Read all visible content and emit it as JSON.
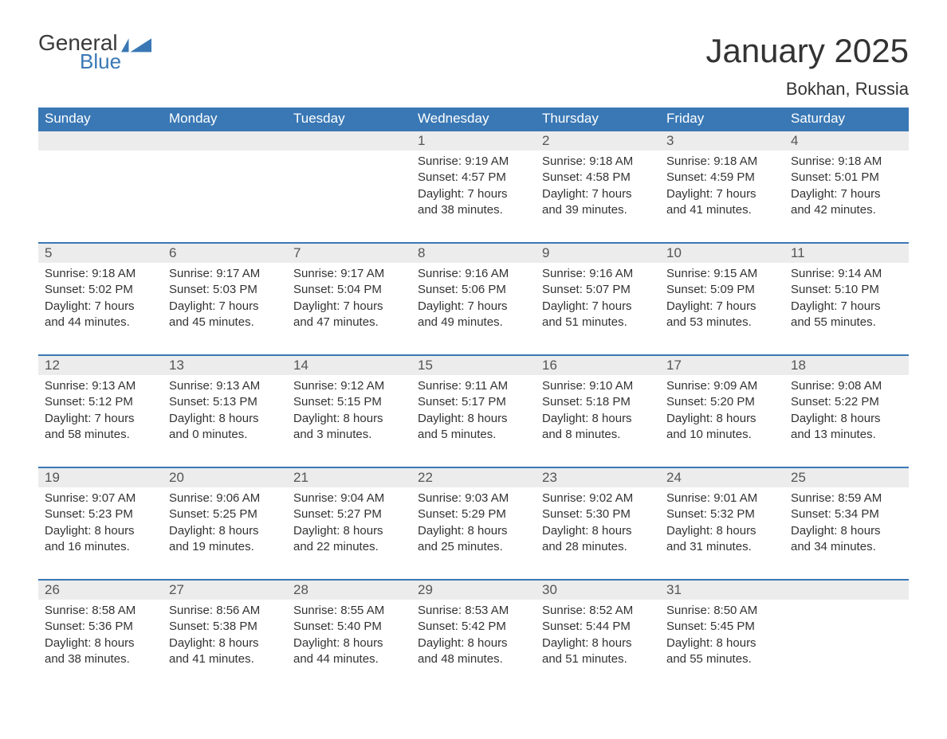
{
  "brand": {
    "name1": "General",
    "name2": "Blue"
  },
  "title": "January 2025",
  "location": "Bokhan, Russia",
  "colors": {
    "header_bg": "#3a78b5",
    "header_text": "#ffffff",
    "daynum_bg": "#ececec",
    "border": "#3a78b5",
    "text": "#333333",
    "bg": "#ffffff"
  },
  "day_headers": [
    "Sunday",
    "Monday",
    "Tuesday",
    "Wednesday",
    "Thursday",
    "Friday",
    "Saturday"
  ],
  "labels": {
    "sunrise": "Sunrise",
    "sunset": "Sunset",
    "daylight": "Daylight"
  },
  "weeks": [
    [
      null,
      null,
      null,
      {
        "n": "1",
        "sunrise": "9:19 AM",
        "sunset": "4:57 PM",
        "daylight": "7 hours and 38 minutes."
      },
      {
        "n": "2",
        "sunrise": "9:18 AM",
        "sunset": "4:58 PM",
        "daylight": "7 hours and 39 minutes."
      },
      {
        "n": "3",
        "sunrise": "9:18 AM",
        "sunset": "4:59 PM",
        "daylight": "7 hours and 41 minutes."
      },
      {
        "n": "4",
        "sunrise": "9:18 AM",
        "sunset": "5:01 PM",
        "daylight": "7 hours and 42 minutes."
      }
    ],
    [
      {
        "n": "5",
        "sunrise": "9:18 AM",
        "sunset": "5:02 PM",
        "daylight": "7 hours and 44 minutes."
      },
      {
        "n": "6",
        "sunrise": "9:17 AM",
        "sunset": "5:03 PM",
        "daylight": "7 hours and 45 minutes."
      },
      {
        "n": "7",
        "sunrise": "9:17 AM",
        "sunset": "5:04 PM",
        "daylight": "7 hours and 47 minutes."
      },
      {
        "n": "8",
        "sunrise": "9:16 AM",
        "sunset": "5:06 PM",
        "daylight": "7 hours and 49 minutes."
      },
      {
        "n": "9",
        "sunrise": "9:16 AM",
        "sunset": "5:07 PM",
        "daylight": "7 hours and 51 minutes."
      },
      {
        "n": "10",
        "sunrise": "9:15 AM",
        "sunset": "5:09 PM",
        "daylight": "7 hours and 53 minutes."
      },
      {
        "n": "11",
        "sunrise": "9:14 AM",
        "sunset": "5:10 PM",
        "daylight": "7 hours and 55 minutes."
      }
    ],
    [
      {
        "n": "12",
        "sunrise": "9:13 AM",
        "sunset": "5:12 PM",
        "daylight": "7 hours and 58 minutes."
      },
      {
        "n": "13",
        "sunrise": "9:13 AM",
        "sunset": "5:13 PM",
        "daylight": "8 hours and 0 minutes."
      },
      {
        "n": "14",
        "sunrise": "9:12 AM",
        "sunset": "5:15 PM",
        "daylight": "8 hours and 3 minutes."
      },
      {
        "n": "15",
        "sunrise": "9:11 AM",
        "sunset": "5:17 PM",
        "daylight": "8 hours and 5 minutes."
      },
      {
        "n": "16",
        "sunrise": "9:10 AM",
        "sunset": "5:18 PM",
        "daylight": "8 hours and 8 minutes."
      },
      {
        "n": "17",
        "sunrise": "9:09 AM",
        "sunset": "5:20 PM",
        "daylight": "8 hours and 10 minutes."
      },
      {
        "n": "18",
        "sunrise": "9:08 AM",
        "sunset": "5:22 PM",
        "daylight": "8 hours and 13 minutes."
      }
    ],
    [
      {
        "n": "19",
        "sunrise": "9:07 AM",
        "sunset": "5:23 PM",
        "daylight": "8 hours and 16 minutes."
      },
      {
        "n": "20",
        "sunrise": "9:06 AM",
        "sunset": "5:25 PM",
        "daylight": "8 hours and 19 minutes."
      },
      {
        "n": "21",
        "sunrise": "9:04 AM",
        "sunset": "5:27 PM",
        "daylight": "8 hours and 22 minutes."
      },
      {
        "n": "22",
        "sunrise": "9:03 AM",
        "sunset": "5:29 PM",
        "daylight": "8 hours and 25 minutes."
      },
      {
        "n": "23",
        "sunrise": "9:02 AM",
        "sunset": "5:30 PM",
        "daylight": "8 hours and 28 minutes."
      },
      {
        "n": "24",
        "sunrise": "9:01 AM",
        "sunset": "5:32 PM",
        "daylight": "8 hours and 31 minutes."
      },
      {
        "n": "25",
        "sunrise": "8:59 AM",
        "sunset": "5:34 PM",
        "daylight": "8 hours and 34 minutes."
      }
    ],
    [
      {
        "n": "26",
        "sunrise": "8:58 AM",
        "sunset": "5:36 PM",
        "daylight": "8 hours and 38 minutes."
      },
      {
        "n": "27",
        "sunrise": "8:56 AM",
        "sunset": "5:38 PM",
        "daylight": "8 hours and 41 minutes."
      },
      {
        "n": "28",
        "sunrise": "8:55 AM",
        "sunset": "5:40 PM",
        "daylight": "8 hours and 44 minutes."
      },
      {
        "n": "29",
        "sunrise": "8:53 AM",
        "sunset": "5:42 PM",
        "daylight": "8 hours and 48 minutes."
      },
      {
        "n": "30",
        "sunrise": "8:52 AM",
        "sunset": "5:44 PM",
        "daylight": "8 hours and 51 minutes."
      },
      {
        "n": "31",
        "sunrise": "8:50 AM",
        "sunset": "5:45 PM",
        "daylight": "8 hours and 55 minutes."
      },
      null
    ]
  ]
}
